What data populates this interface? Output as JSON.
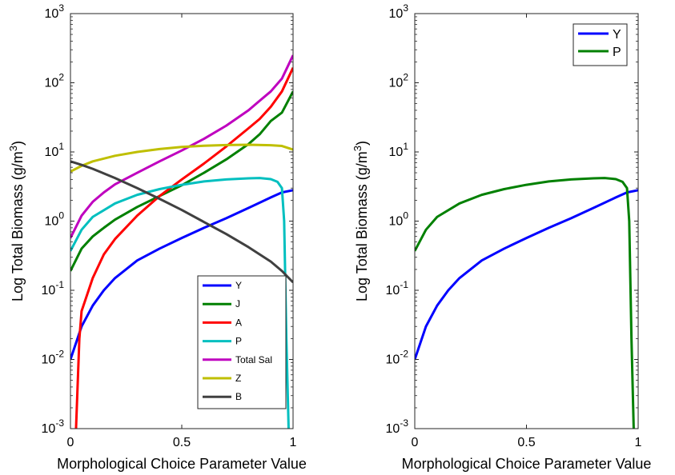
{
  "chart_data": [
    {
      "type": "line",
      "xlabel": "Morphological Choice Parameter Value",
      "ylabel": "Log Total Biomass (g/m³)",
      "ylabel_base": "Log Total Biomass (g/m",
      "ylabel_sup": "3",
      "ylabel_end": ")",
      "xlim": [
        0,
        1
      ],
      "ylim": [
        0.001,
        1000
      ],
      "yscale": "log",
      "xticks": [
        "0",
        "0.5",
        "1"
      ],
      "ytick_exponents": [
        "-3",
        "-2",
        "-1",
        "0",
        "1",
        "2",
        "3"
      ],
      "legend_position": "bottom-right",
      "series": [
        {
          "name": "Y",
          "color": "#0000ff",
          "x": [
            0,
            0.05,
            0.1,
            0.15,
            0.2,
            0.3,
            0.4,
            0.5,
            0.6,
            0.7,
            0.8,
            0.9,
            0.95,
            1.0
          ],
          "y": [
            0.01,
            0.03,
            0.06,
            0.1,
            0.15,
            0.27,
            0.4,
            0.57,
            0.8,
            1.1,
            1.55,
            2.2,
            2.6,
            2.8
          ]
        },
        {
          "name": "J",
          "color": "#008000",
          "x": [
            0,
            0.05,
            0.1,
            0.15,
            0.2,
            0.3,
            0.4,
            0.5,
            0.6,
            0.7,
            0.8,
            0.85,
            0.9,
            0.95,
            1.0
          ],
          "y": [
            0.19,
            0.4,
            0.6,
            0.8,
            1.05,
            1.6,
            2.3,
            3.3,
            5.0,
            7.8,
            13,
            18,
            28,
            37,
            75
          ]
        },
        {
          "name": "A",
          "color": "#ff0000",
          "x": [
            0.025,
            0.04,
            0.05,
            0.1,
            0.15,
            0.2,
            0.3,
            0.4,
            0.5,
            0.6,
            0.7,
            0.8,
            0.85,
            0.9,
            0.95,
            1.0
          ],
          "y": [
            0.001,
            0.02,
            0.05,
            0.15,
            0.33,
            0.55,
            1.2,
            2.3,
            4.0,
            6.8,
            12,
            22,
            30,
            45,
            75,
            165
          ]
        },
        {
          "name": "P",
          "color": "#00bfbf",
          "x": [
            0,
            0.05,
            0.1,
            0.2,
            0.3,
            0.4,
            0.5,
            0.6,
            0.7,
            0.8,
            0.85,
            0.9,
            0.93,
            0.95,
            0.96,
            0.97,
            0.98
          ],
          "y": [
            0.37,
            0.75,
            1.15,
            1.8,
            2.4,
            2.9,
            3.35,
            3.75,
            4.0,
            4.15,
            4.2,
            4.05,
            3.7,
            3.0,
            1.0,
            0.02,
            0.001
          ]
        },
        {
          "name": "Total Sal",
          "color": "#bf00bf",
          "x": [
            0,
            0.05,
            0.1,
            0.15,
            0.2,
            0.3,
            0.4,
            0.5,
            0.6,
            0.7,
            0.8,
            0.85,
            0.9,
            0.95,
            1.0
          ],
          "y": [
            0.57,
            1.2,
            1.9,
            2.6,
            3.4,
            5.0,
            7.3,
            10.5,
            15.5,
            24,
            40,
            55,
            75,
            115,
            250
          ]
        },
        {
          "name": "Z",
          "color": "#bfbf00",
          "x": [
            0,
            0.05,
            0.1,
            0.2,
            0.3,
            0.4,
            0.5,
            0.6,
            0.7,
            0.8,
            0.9,
            0.95,
            1.0
          ],
          "y": [
            5.2,
            6.3,
            7.3,
            8.8,
            10.0,
            11.0,
            11.8,
            12.3,
            12.6,
            12.7,
            12.5,
            12.2,
            10.8
          ]
        },
        {
          "name": "B",
          "color": "#404040",
          "x": [
            0,
            0.05,
            0.1,
            0.2,
            0.3,
            0.4,
            0.5,
            0.6,
            0.7,
            0.8,
            0.9,
            0.95,
            1.0
          ],
          "y": [
            7.3,
            6.5,
            5.7,
            4.2,
            3.0,
            2.1,
            1.45,
            0.97,
            0.65,
            0.42,
            0.26,
            0.19,
            0.13
          ]
        }
      ]
    },
    {
      "type": "line",
      "xlabel": "Morphological Choice Parameter Value",
      "ylabel": "Log Total Biomass (g/m³)",
      "ylabel_base": "Log Total Biomass (g/m",
      "ylabel_sup": "3",
      "ylabel_end": ")",
      "xlim": [
        0,
        1
      ],
      "ylim": [
        0.001,
        1000
      ],
      "yscale": "log",
      "xticks": [
        "0",
        "0.5",
        "1"
      ],
      "ytick_exponents": [
        "-3",
        "-2",
        "-1",
        "0",
        "1",
        "2",
        "3"
      ],
      "legend_position": "top-right",
      "series": [
        {
          "name": "Y",
          "color": "#0000ff",
          "x": [
            0,
            0.05,
            0.1,
            0.15,
            0.2,
            0.3,
            0.4,
            0.5,
            0.6,
            0.7,
            0.8,
            0.9,
            0.95,
            1.0
          ],
          "y": [
            0.01,
            0.03,
            0.06,
            0.1,
            0.15,
            0.27,
            0.4,
            0.57,
            0.8,
            1.1,
            1.55,
            2.2,
            2.6,
            2.8
          ]
        },
        {
          "name": "P",
          "color": "#008000",
          "x": [
            0,
            0.05,
            0.1,
            0.2,
            0.3,
            0.4,
            0.5,
            0.6,
            0.7,
            0.8,
            0.85,
            0.9,
            0.93,
            0.95,
            0.96,
            0.97,
            0.98
          ],
          "y": [
            0.37,
            0.75,
            1.15,
            1.8,
            2.4,
            2.9,
            3.35,
            3.75,
            4.0,
            4.15,
            4.2,
            4.05,
            3.7,
            3.0,
            1.0,
            0.02,
            0.001
          ]
        }
      ]
    }
  ]
}
